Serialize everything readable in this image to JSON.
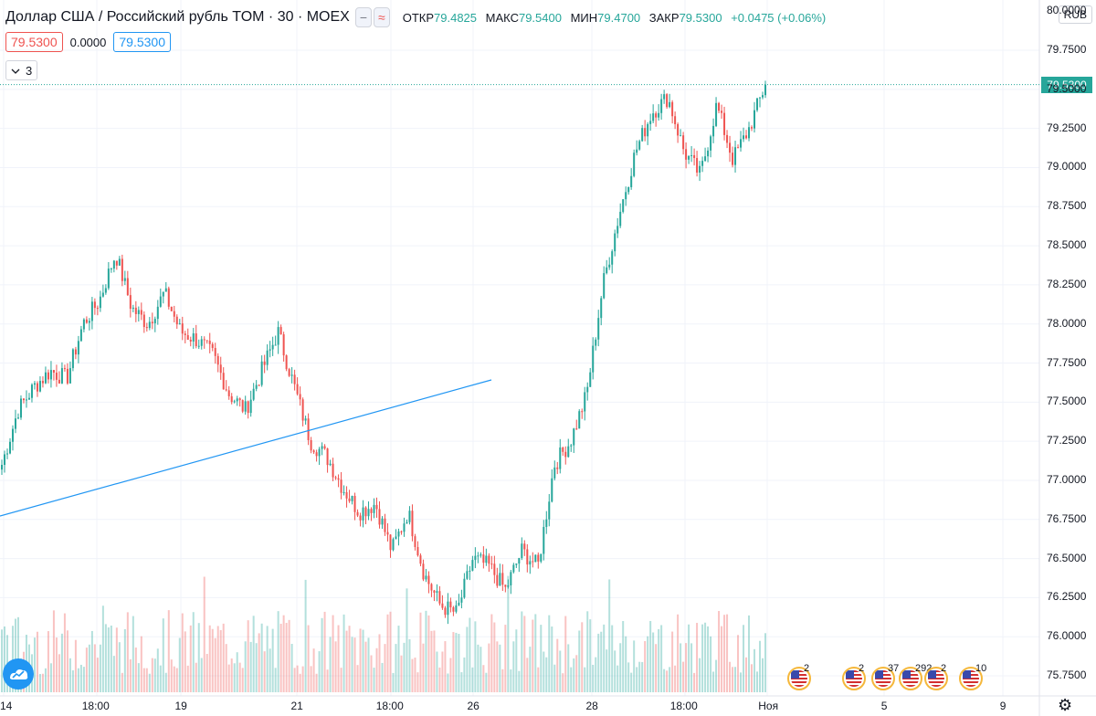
{
  "header": {
    "title": "Доллар США / Российский рубль TOM · 30 · MOEX",
    "btn_minus": "−",
    "btn_approx": "≈",
    "ohlc": [
      {
        "key": "ОТКР",
        "value": "79.4825"
      },
      {
        "key": "МАКС",
        "value": "79.5400"
      },
      {
        "key": "МИН",
        "value": "79.4700"
      },
      {
        "key": "ЗАКР",
        "value": "79.5300"
      },
      {
        "key": "",
        "value": "+0.0475 (+0.06%)"
      }
    ]
  },
  "quote_row": {
    "bid": "79.5300",
    "spread": "0.0000",
    "ask": "79.5300"
  },
  "indicators_toggle": {
    "count": "3"
  },
  "currency": "RUB",
  "current_price": "79.5300",
  "colors": {
    "up": "#26a69a",
    "down": "#ef5350",
    "trendline": "#2196f3",
    "grid": "#f0f3fa"
  },
  "price_axis": {
    "labels": [
      "79.7500",
      "79.5000",
      "79.2500",
      "79.0000",
      "78.7500",
      "78.5000",
      "78.2500",
      "78.0000",
      "77.7500",
      "77.5000",
      "77.2500",
      "77.0000",
      "76.7500",
      "76.5000",
      "76.2500",
      "76.0000",
      "75.7500"
    ],
    "top_cut_label": "80.0000",
    "min": 75.7,
    "max": 80.05
  },
  "time_axis": {
    "labels": [
      "14",
      "18:00",
      "19",
      "21",
      "18:00",
      "26",
      "28",
      "18:00",
      "Ноя",
      "5",
      "9"
    ]
  },
  "events": [
    {
      "name": "event-flag-1",
      "count": "2"
    },
    {
      "name": "event-flag-2",
      "count": "2"
    },
    {
      "name": "event-flag-3",
      "count": "37"
    },
    {
      "name": "event-flag-4",
      "count": "292"
    },
    {
      "name": "event-flag-5",
      "count": "2"
    },
    {
      "name": "event-flag-6",
      "count": "10"
    }
  ],
  "chart_data": {
    "type": "candlestick",
    "symbol": "Доллар США / Российский рубль TOM",
    "interval": "30",
    "exchange": "MOEX",
    "path_closes": [
      77.1,
      77.45,
      77.6,
      77.7,
      77.65,
      78.0,
      78.15,
      78.45,
      78.1,
      78.0,
      78.2,
      77.95,
      77.9,
      77.8,
      77.55,
      77.45,
      77.7,
      77.95,
      77.6,
      77.25,
      77.15,
      76.95,
      76.8,
      76.85,
      76.55,
      76.8,
      76.4,
      76.2,
      76.15,
      76.5,
      76.45,
      76.3,
      76.55,
      76.45,
      77.1,
      77.25,
      77.55,
      78.25,
      78.7,
      79.1,
      79.35,
      79.45,
      79.1,
      78.95,
      79.4,
      79.05,
      79.25,
      79.53
    ],
    "last_close": 79.53
  }
}
